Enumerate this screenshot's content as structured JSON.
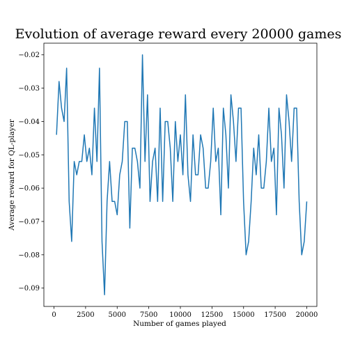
{
  "chart_data": {
    "type": "line",
    "title": "Evolution of average reward every 20000 games",
    "xlabel": "Number of games played",
    "ylabel": "Average reward for QL-player",
    "xlim": [
      -800,
      20800
    ],
    "ylim": [
      -0.0955,
      -0.0165
    ],
    "xticks": [
      0,
      2500,
      5000,
      7500,
      10000,
      12500,
      15000,
      17500,
      20000
    ],
    "xtick_labels": [
      "0",
      "2500",
      "5000",
      "7500",
      "10000",
      "12500",
      "15000",
      "17500",
      "20000"
    ],
    "yticks": [
      -0.02,
      -0.03,
      -0.04,
      -0.05,
      -0.06,
      -0.07,
      -0.08,
      -0.09
    ],
    "ytick_labels": [
      "−0.02",
      "−0.03",
      "−0.04",
      "−0.05",
      "−0.06",
      "−0.07",
      "−0.08",
      "−0.09"
    ],
    "grid": false,
    "series": [
      {
        "color": "#1f77b4",
        "x": [
          200,
          400,
          600,
          800,
          1000,
          1200,
          1400,
          1600,
          1800,
          2000,
          2200,
          2400,
          2600,
          2800,
          3000,
          3200,
          3400,
          3600,
          3800,
          4000,
          4200,
          4400,
          4600,
          4800,
          5000,
          5200,
          5400,
          5600,
          5800,
          6000,
          6200,
          6400,
          6600,
          6800,
          7000,
          7200,
          7400,
          7600,
          7800,
          8000,
          8200,
          8400,
          8600,
          8800,
          9000,
          9200,
          9400,
          9600,
          9800,
          10000,
          10200,
          10400,
          10600,
          10800,
          11000,
          11200,
          11400,
          11600,
          11800,
          12000,
          12200,
          12400,
          12600,
          12800,
          13000,
          13200,
          13400,
          13600,
          13800,
          14000,
          14200,
          14400,
          14600,
          14800,
          15000,
          15200,
          15400,
          15600,
          15800,
          16000,
          16200,
          16400,
          16600,
          16800,
          17000,
          17200,
          17400,
          17600,
          17800,
          18000,
          18200,
          18400,
          18600,
          18800,
          19000,
          19200,
          19400,
          19600,
          19800,
          20000
        ],
        "y": [
          -0.044,
          -0.028,
          -0.036,
          -0.04,
          -0.024,
          -0.064,
          -0.076,
          -0.052,
          -0.056,
          -0.052,
          -0.052,
          -0.044,
          -0.052,
          -0.048,
          -0.056,
          -0.036,
          -0.052,
          -0.024,
          -0.076,
          -0.092,
          -0.064,
          -0.052,
          -0.064,
          -0.064,
          -0.068,
          -0.056,
          -0.052,
          -0.04,
          -0.04,
          -0.072,
          -0.048,
          -0.048,
          -0.052,
          -0.06,
          -0.02,
          -0.052,
          -0.032,
          -0.064,
          -0.052,
          -0.048,
          -0.064,
          -0.036,
          -0.064,
          -0.04,
          -0.04,
          -0.048,
          -0.064,
          -0.04,
          -0.052,
          -0.044,
          -0.056,
          -0.032,
          -0.056,
          -0.064,
          -0.044,
          -0.056,
          -0.056,
          -0.044,
          -0.048,
          -0.06,
          -0.06,
          -0.052,
          -0.036,
          -0.052,
          -0.048,
          -0.068,
          -0.036,
          -0.044,
          -0.06,
          -0.032,
          -0.04,
          -0.052,
          -0.036,
          -0.036,
          -0.064,
          -0.08,
          -0.076,
          -0.064,
          -0.048,
          -0.056,
          -0.044,
          -0.06,
          -0.06,
          -0.052,
          -0.036,
          -0.052,
          -0.048,
          -0.068,
          -0.036,
          -0.044,
          -0.06,
          -0.032,
          -0.04,
          -0.052,
          -0.036,
          -0.036,
          -0.064,
          -0.08,
          -0.076,
          -0.064
        ]
      }
    ]
  }
}
